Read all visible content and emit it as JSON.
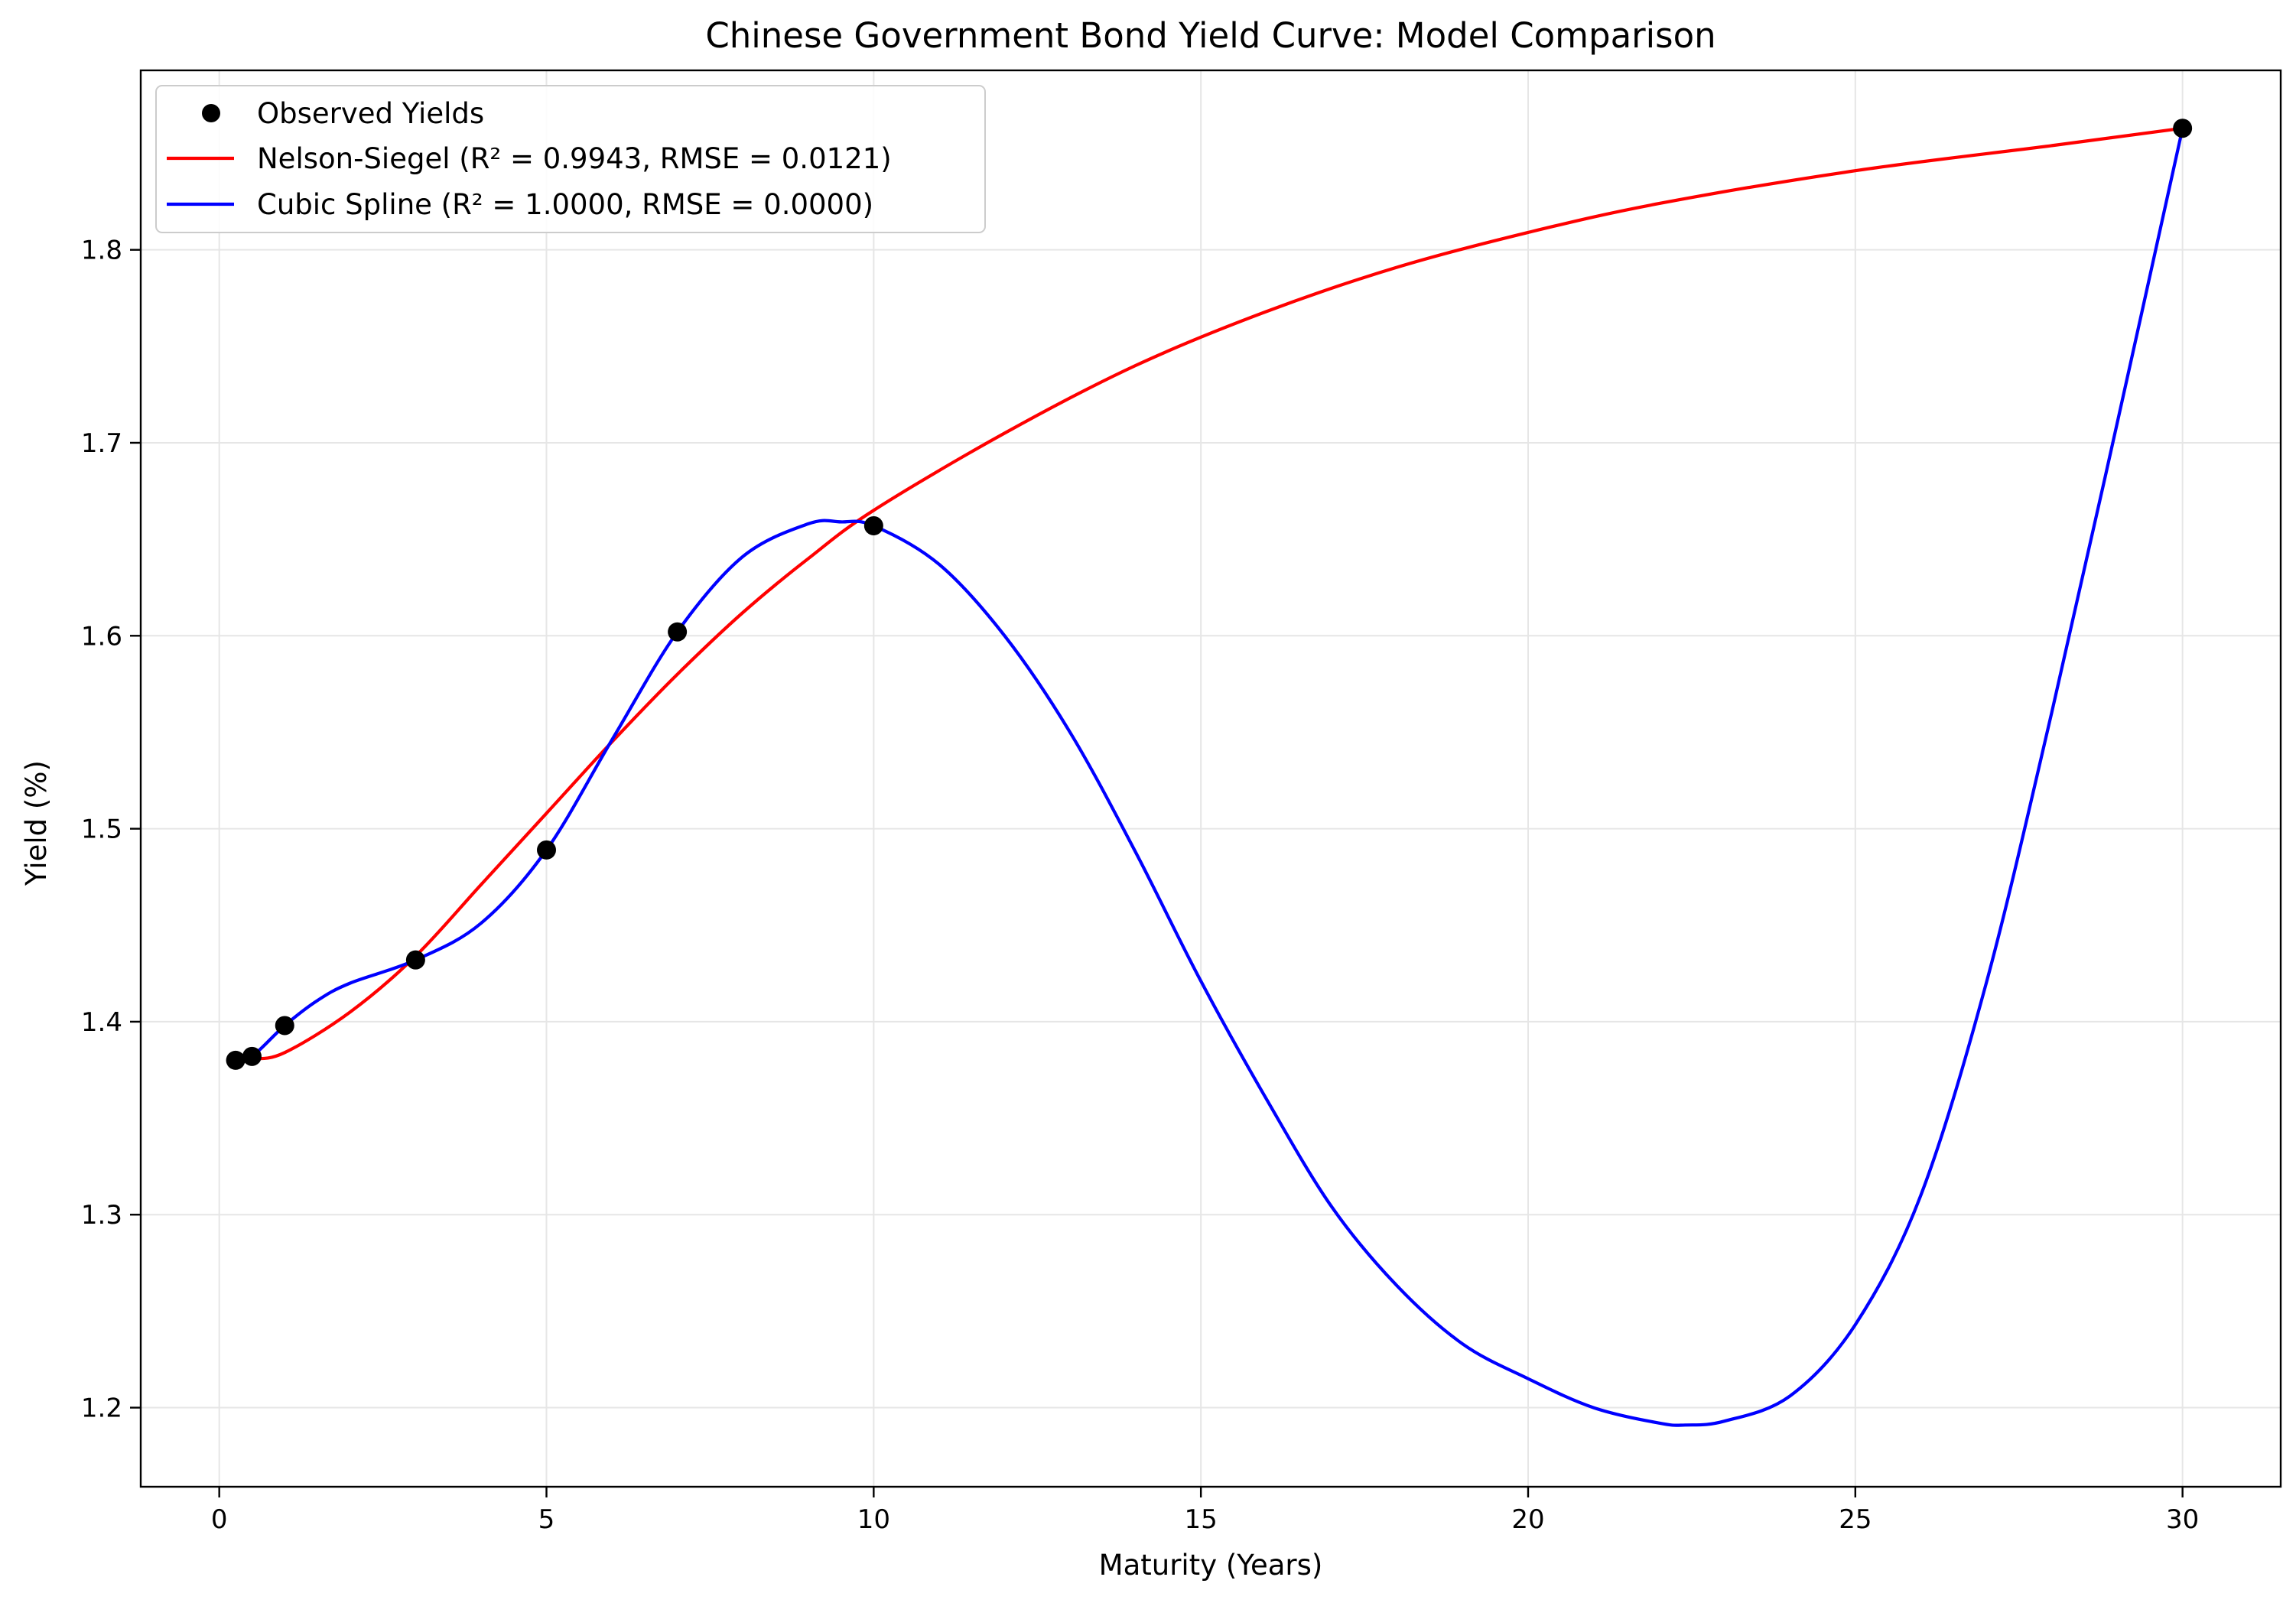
{
  "chart_data": {
    "type": "line",
    "title": "Chinese Government Bond Yield Curve: Model Comparison",
    "xlabel": "Maturity (Years)",
    "ylabel": "Yield (%)",
    "xlim": [
      -1.2,
      31.5
    ],
    "ylim": [
      1.159,
      1.893
    ],
    "xticks": [
      0,
      5,
      10,
      15,
      20,
      25,
      30
    ],
    "yticks": [
      1.2,
      1.3,
      1.4,
      1.5,
      1.6,
      1.7,
      1.8
    ],
    "grid": true,
    "legend_position": "top-left",
    "observed": {
      "name": "Observed Yields",
      "color": "#000000",
      "x": [
        0.25,
        0.5,
        1,
        3,
        5,
        7,
        10,
        30
      ],
      "y": [
        1.38,
        1.382,
        1.398,
        1.432,
        1.489,
        1.602,
        1.657,
        1.863
      ]
    },
    "series": [
      {
        "name": "Nelson-Siegel (R² = 0.9943, RMSE = 0.0121)",
        "color": "#ff0000",
        "x": [
          0.25,
          0.5,
          1,
          2,
          3,
          4,
          5,
          6,
          7,
          8,
          9,
          10,
          12,
          14,
          16,
          18,
          20,
          22,
          25,
          28,
          30
        ],
        "y": [
          1.384,
          1.381,
          1.384,
          1.405,
          1.434,
          1.471,
          1.508,
          1.545,
          1.58,
          1.612,
          1.64,
          1.665,
          1.705,
          1.74,
          1.768,
          1.791,
          1.809,
          1.824,
          1.841,
          1.854,
          1.863
        ]
      },
      {
        "name": "Cubic Spline (R² = 1.0000, RMSE = 0.0000)",
        "color": "#0000ff",
        "x": [
          0.25,
          0.5,
          1,
          1.5,
          2,
          3,
          4,
          5,
          6,
          7,
          8,
          9,
          9.5,
          10,
          11,
          12,
          13,
          14,
          15,
          16,
          17,
          18,
          19,
          20,
          21,
          22,
          22.4,
          23,
          24,
          25,
          26,
          27,
          28,
          29,
          30
        ],
        "y": [
          1.38,
          1.382,
          1.398,
          1.411,
          1.42,
          1.432,
          1.451,
          1.489,
          1.546,
          1.602,
          1.641,
          1.658,
          1.659,
          1.657,
          1.637,
          1.6,
          1.55,
          1.488,
          1.421,
          1.36,
          1.304,
          1.263,
          1.233,
          1.215,
          1.2,
          1.192,
          1.191,
          1.193,
          1.206,
          1.243,
          1.31,
          1.42,
          1.56,
          1.71,
          1.863
        ]
      }
    ]
  }
}
